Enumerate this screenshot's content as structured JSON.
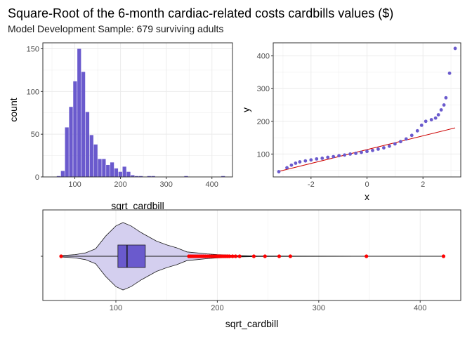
{
  "title": "Square-Root of the 6-month cardiac-related costs cardbills values ($)",
  "subtitle": "Model Development Sample: 679 surviving adults",
  "colors": {
    "fill": "#6A5ACD",
    "violet_fill": "#D4CFEF",
    "outlier": "#FF0000",
    "qq_line": "#CC0000",
    "grid": "#EBEBEB",
    "panel_border": "#333333"
  },
  "chart_data": [
    {
      "type": "bar",
      "subtype": "histogram",
      "xlabel": "sqrt_cardbill",
      "ylabel": "count",
      "xlim": [
        30,
        445
      ],
      "ylim": [
        0,
        157
      ],
      "x_ticks": [
        100,
        200,
        300,
        400
      ],
      "y_ticks": [
        0,
        50,
        100,
        150
      ],
      "grid": true,
      "bin_width": 9,
      "bins": [
        {
          "x": 47,
          "count": 0.3
        },
        {
          "x": 56,
          "count": 0.3
        },
        {
          "x": 65,
          "count": 1
        },
        {
          "x": 74,
          "count": 7
        },
        {
          "x": 83,
          "count": 58
        },
        {
          "x": 92,
          "count": 82
        },
        {
          "x": 101,
          "count": 112
        },
        {
          "x": 110,
          "count": 150
        },
        {
          "x": 119,
          "count": 123
        },
        {
          "x": 128,
          "count": 76
        },
        {
          "x": 137,
          "count": 49
        },
        {
          "x": 146,
          "count": 38
        },
        {
          "x": 155,
          "count": 21
        },
        {
          "x": 164,
          "count": 21
        },
        {
          "x": 173,
          "count": 14
        },
        {
          "x": 182,
          "count": 17
        },
        {
          "x": 191,
          "count": 10
        },
        {
          "x": 200,
          "count": 6
        },
        {
          "x": 209,
          "count": 12
        },
        {
          "x": 218,
          "count": 6
        },
        {
          "x": 227,
          "count": 2
        },
        {
          "x": 236,
          "count": 1
        },
        {
          "x": 245,
          "count": 1
        },
        {
          "x": 263,
          "count": 1
        },
        {
          "x": 272,
          "count": 1
        },
        {
          "x": 344,
          "count": 1
        },
        {
          "x": 425,
          "count": 1
        }
      ]
    },
    {
      "type": "scatter",
      "subtype": "normal-qq",
      "xlabel": "x",
      "ylabel": "y",
      "xlim": [
        -3.35,
        3.35
      ],
      "ylim": [
        30,
        440
      ],
      "x_ticks": [
        -2,
        0,
        2
      ],
      "y_ticks": [
        100,
        200,
        300,
        400
      ],
      "grid": true,
      "n": 679,
      "reference_line": [
        [
          -3.15,
          47
        ],
        [
          3.15,
          180
        ]
      ],
      "points": [
        [
          -3.15,
          46
        ],
        [
          -2.86,
          58
        ],
        [
          -2.7,
          66
        ],
        [
          -2.55,
          72
        ],
        [
          -2.4,
          76
        ],
        [
          -2.2,
          79
        ],
        [
          -2.0,
          82
        ],
        [
          -1.8,
          85
        ],
        [
          -1.6,
          87
        ],
        [
          -1.4,
          90
        ],
        [
          -1.2,
          92
        ],
        [
          -1.0,
          95
        ],
        [
          -0.8,
          97
        ],
        [
          -0.6,
          100
        ],
        [
          -0.4,
          102
        ],
        [
          -0.2,
          105
        ],
        [
          0.0,
          108
        ],
        [
          0.2,
          111
        ],
        [
          0.4,
          115
        ],
        [
          0.6,
          119
        ],
        [
          0.8,
          124
        ],
        [
          1.0,
          131
        ],
        [
          1.2,
          138
        ],
        [
          1.4,
          146
        ],
        [
          1.6,
          157
        ],
        [
          1.8,
          171
        ],
        [
          1.95,
          188
        ],
        [
          2.1,
          200
        ],
        [
          2.3,
          205
        ],
        [
          2.45,
          210
        ],
        [
          2.55,
          220
        ],
        [
          2.65,
          235
        ],
        [
          2.75,
          250
        ],
        [
          2.82,
          272
        ],
        [
          2.95,
          347
        ],
        [
          3.15,
          423
        ]
      ]
    },
    {
      "type": "violin-boxplot",
      "xlabel": "sqrt_cardbill",
      "xlim": [
        28,
        440
      ],
      "x_ticks": [
        100,
        200,
        300,
        400
      ],
      "grid": true,
      "box": {
        "min": 46,
        "q1": 102,
        "median": 111,
        "q3": 129,
        "whisker_high": 170,
        "max": 423
      },
      "outliers": [
        172,
        174,
        176,
        178,
        180,
        182,
        184,
        186,
        188,
        190,
        192,
        194,
        196,
        198,
        200,
        202,
        204,
        206,
        208,
        210,
        212,
        215,
        218,
        222,
        236,
        247,
        261,
        272,
        347,
        423
      ],
      "low_point": 46,
      "density": [
        {
          "x": 46,
          "w": 0.02
        },
        {
          "x": 60,
          "w": 0.05
        },
        {
          "x": 70,
          "w": 0.1
        },
        {
          "x": 80,
          "w": 0.22
        },
        {
          "x": 90,
          "w": 0.6
        },
        {
          "x": 100,
          "w": 0.9
        },
        {
          "x": 107,
          "w": 1.0
        },
        {
          "x": 115,
          "w": 0.9
        },
        {
          "x": 125,
          "w": 0.7
        },
        {
          "x": 140,
          "w": 0.45
        },
        {
          "x": 150,
          "w": 0.34
        },
        {
          "x": 160,
          "w": 0.25
        },
        {
          "x": 170,
          "w": 0.13
        },
        {
          "x": 180,
          "w": 0.1
        },
        {
          "x": 190,
          "w": 0.07
        },
        {
          "x": 200,
          "w": 0.05
        },
        {
          "x": 210,
          "w": 0.04
        },
        {
          "x": 220,
          "w": 0.02
        },
        {
          "x": 240,
          "w": 0.008
        },
        {
          "x": 280,
          "w": 0.004
        },
        {
          "x": 340,
          "w": 0.003
        },
        {
          "x": 423,
          "w": 0.002
        }
      ]
    }
  ]
}
